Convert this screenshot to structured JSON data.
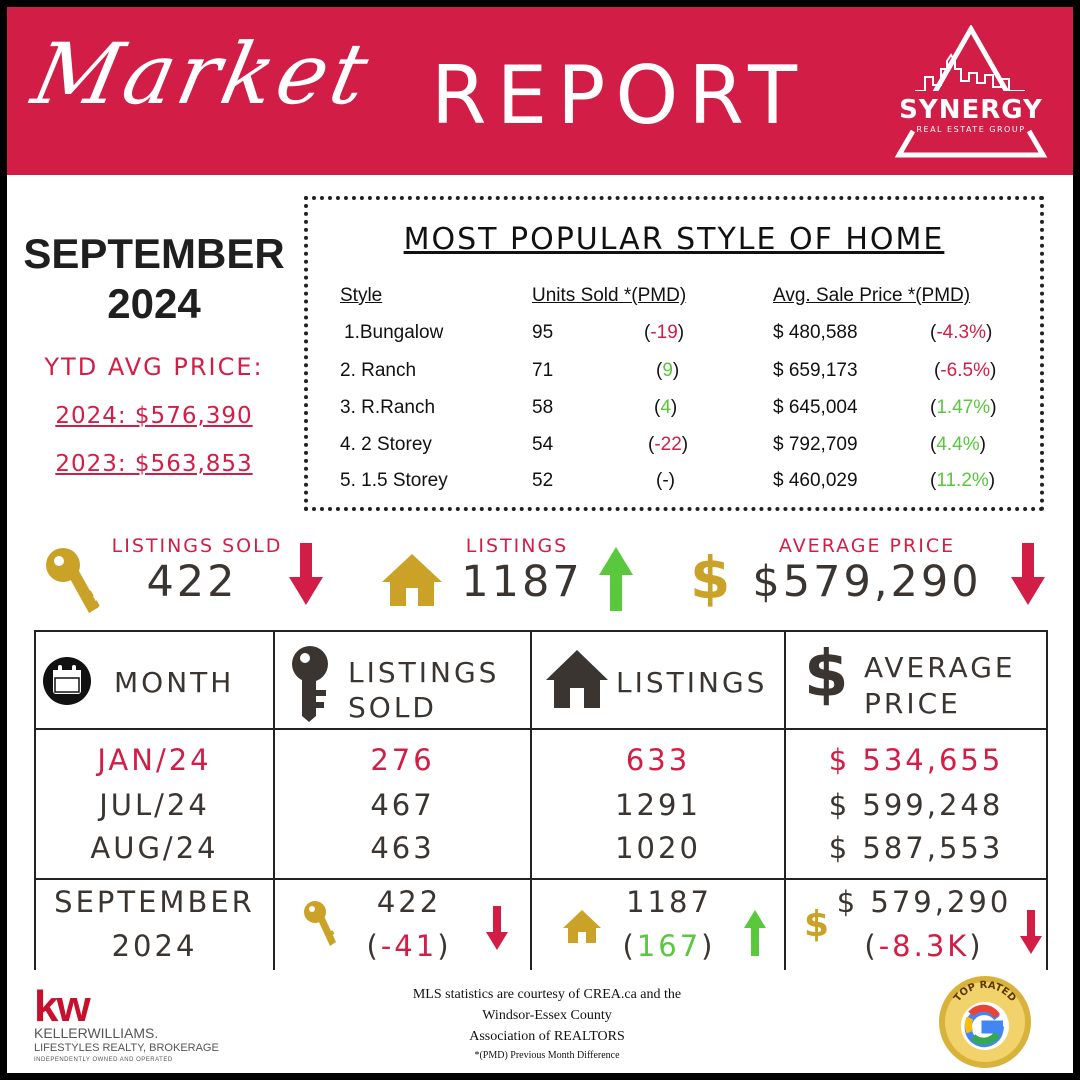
{
  "header": {
    "title_script": "Market",
    "title_main": "REPORT",
    "logo_name": "SYNERGY",
    "logo_sub": "REAL ESTATE GROUP"
  },
  "period": {
    "month": "SEPTEMBER",
    "year": "2024"
  },
  "ytd": {
    "label": "YTD AVG PRICE:",
    "current": "2024: $576,390",
    "previous": "2023: $563,853"
  },
  "popular": {
    "title": "MOST POPULAR STYLE OF HOME",
    "headers": [
      "Style",
      "Units Sold *(PMD)",
      "Avg. Sale Price *(PMD)"
    ],
    "rows": [
      {
        "style": "1.Bungalow",
        "units": "95",
        "units_diff": "(-19)",
        "units_dir": "neg",
        "price": "$ 480,588",
        "price_diff": "(-4.3%)",
        "price_dir": "neg"
      },
      {
        "style": "2. Ranch",
        "units": "71",
        "units_diff": "(9)",
        "units_dir": "pos",
        "price": "$ 659,173",
        "price_diff": "(-6.5%)",
        "price_dir": "neg"
      },
      {
        "style": "3. R.Ranch",
        "units": "58",
        "units_diff": "(4)",
        "units_dir": "pos",
        "price": "$ 645,004",
        "price_diff": "(1.47%)",
        "price_dir": "pos"
      },
      {
        "style": "4. 2 Storey",
        "units": "54",
        "units_diff": "(-22)",
        "units_dir": "neg",
        "price": "$ 792,709",
        "price_diff": "(4.4%)",
        "price_dir": "pos"
      },
      {
        "style": "5. 1.5 Storey",
        "units": "52",
        "units_diff": "(-)",
        "units_dir": "none",
        "price": "$ 460,029",
        "price_diff": "(11.2%)",
        "price_dir": "pos"
      }
    ]
  },
  "stats": {
    "sold": {
      "label": "LISTINGS SOLD",
      "value": "422",
      "trend": "down"
    },
    "listings": {
      "label": "LISTINGS",
      "value": "1187",
      "trend": "up"
    },
    "price": {
      "label": "AVERAGE PRICE",
      "value": "$579,290",
      "trend": "down"
    }
  },
  "table": {
    "headers": {
      "month": "MONTH",
      "sold_1": "LISTINGS",
      "sold_2": "SOLD",
      "listings": "LISTINGS",
      "price_1": "AVERAGE",
      "price_2": "PRICE"
    },
    "rows": [
      {
        "month": "JAN/24",
        "sold": "276",
        "listings": "633",
        "price": "$ 534,655",
        "highlight": true
      },
      {
        "month": "JUL/24",
        "sold": "467",
        "listings": "1291",
        "price": "$ 599,248",
        "highlight": false
      },
      {
        "month": "AUG/24",
        "sold": "463",
        "listings": "1020",
        "price": "$ 587,553",
        "highlight": false
      }
    ],
    "current": {
      "month_1": "SEPTEMBER",
      "month_2": "2024",
      "sold": "422",
      "sold_diff_open": "(",
      "sold_diff_val": "-41",
      "sold_diff_close": ")",
      "listings": "1187",
      "listings_diff_open": "(",
      "listings_diff_val": "167",
      "listings_diff_close": ")",
      "price": "$ 579,290",
      "price_diff_open": "(",
      "price_diff_val": "-8.3K",
      "price_diff_close": ")"
    }
  },
  "footer": {
    "kw_logo": "kw",
    "kw_name": "KELLERWILLIAMS.",
    "kw_line2": "LIFESTYLES REALTY, BROKERAGE",
    "kw_line3": "INDEPENDENTLY OWNED AND OPERATED",
    "source_1": "MLS statistics are courtesy of CREA.ca and the",
    "source_2": "Windsor-Essex County",
    "source_3": "Association of REALTORS",
    "source_4": "*(PMD) Previous Month Difference",
    "badge_text": "TOP RATED"
  },
  "colors": {
    "brand": "#d21e47",
    "gold": "#c9a227",
    "up": "#59c83c",
    "text": "#3b3532"
  }
}
